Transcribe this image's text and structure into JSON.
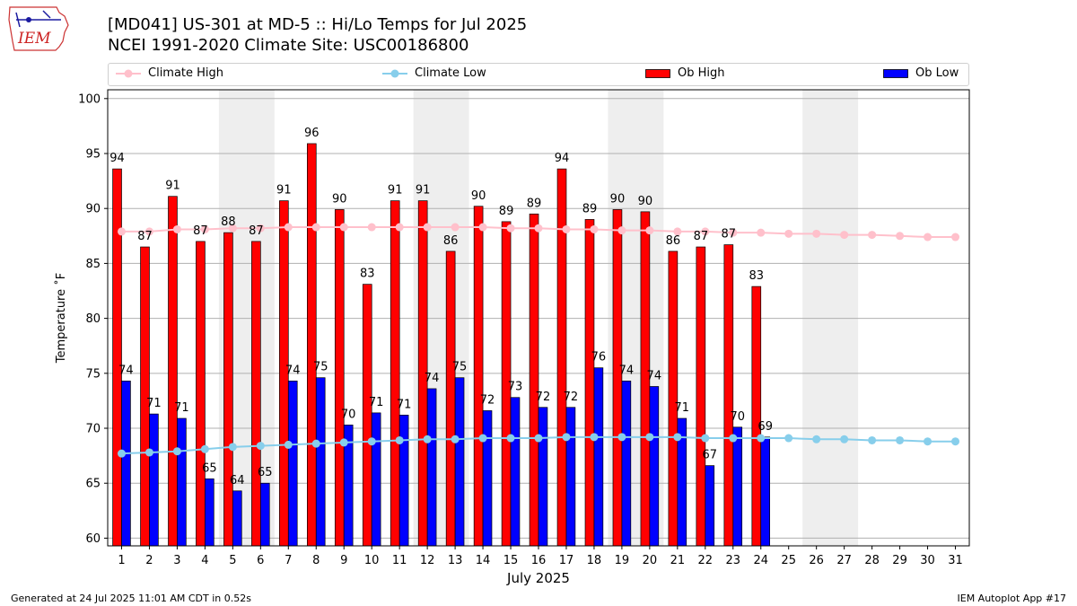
{
  "header": {
    "title_line1": "[MD041] US-301 at MD-5  :: Hi/Lo Temps for Jul 2025",
    "title_line2": "NCEI 1991-2020 Climate Site: USC00186800",
    "logo_text": "IEM"
  },
  "legend": {
    "climate_high": "Climate High",
    "climate_low": "Climate Low",
    "ob_high": "Ob High",
    "ob_low": "Ob Low"
  },
  "footer": {
    "generated": "Generated at 24 Jul 2025 11:01 AM CDT in 0.52s",
    "app": "IEM Autoplot App #17"
  },
  "colors": {
    "ob_high": "#ff0000",
    "ob_low": "#0000ff",
    "climate_high": "#ffc0cb",
    "climate_low": "#87ceeb",
    "weekend_shade": "#eeeeee",
    "grid": "#b0b0b0"
  },
  "chart_data": {
    "type": "bar",
    "xlabel": "July 2025",
    "ylabel": "Temperature ˚F",
    "ylim": [
      59.3,
      100.8
    ],
    "yticks": [
      60,
      65,
      70,
      75,
      80,
      85,
      90,
      95,
      100
    ],
    "grid": "horizontal",
    "legend_position": "top",
    "days": [
      1,
      2,
      3,
      4,
      5,
      6,
      7,
      8,
      9,
      10,
      11,
      12,
      13,
      14,
      15,
      16,
      17,
      18,
      19,
      20,
      21,
      22,
      23,
      24,
      25,
      26,
      27,
      28,
      29,
      30,
      31
    ],
    "shaded_day_ranges": [
      [
        5,
        6
      ],
      [
        12,
        13
      ],
      [
        19,
        20
      ],
      [
        26,
        27
      ]
    ],
    "series": [
      {
        "name": "Ob High",
        "kind": "bar",
        "values": [
          93.6,
          86.5,
          91.1,
          87.0,
          87.8,
          87.0,
          90.7,
          95.9,
          89.9,
          83.1,
          90.7,
          90.7,
          86.1,
          90.2,
          88.8,
          89.5,
          93.6,
          89.0,
          89.9,
          89.7,
          86.1,
          86.5,
          86.7,
          82.9
        ],
        "labels": [
          "94",
          "87",
          "91",
          "87",
          "88",
          "87",
          "91",
          "96",
          "90",
          "83",
          "91",
          "91",
          "86",
          "90",
          "89",
          "89",
          "94",
          "89",
          "90",
          "90",
          "86",
          "87",
          "87",
          "83"
        ]
      },
      {
        "name": "Ob Low",
        "kind": "bar",
        "values": [
          74.3,
          71.3,
          70.9,
          65.4,
          64.3,
          65.0,
          74.3,
          74.6,
          70.3,
          71.4,
          71.2,
          73.6,
          74.6,
          71.6,
          72.8,
          71.9,
          71.9,
          75.5,
          74.3,
          73.8,
          70.9,
          66.6,
          70.1,
          69.2
        ],
        "labels": [
          "74",
          "71",
          "71",
          "65",
          "64",
          "65",
          "74",
          "75",
          "70",
          "71",
          "71",
          "74",
          "75",
          "72",
          "73",
          "72",
          "72",
          "76",
          "74",
          "74",
          "71",
          "67",
          "70",
          "69"
        ]
      },
      {
        "name": "Climate High",
        "kind": "line",
        "values": [
          87.9,
          87.9,
          88.1,
          88.1,
          88.2,
          88.2,
          88.3,
          88.3,
          88.3,
          88.3,
          88.3,
          88.3,
          88.3,
          88.3,
          88.2,
          88.2,
          88.1,
          88.1,
          88.0,
          88.0,
          87.9,
          87.9,
          87.8,
          87.8,
          87.7,
          87.7,
          87.6,
          87.6,
          87.5,
          87.4,
          87.4
        ]
      },
      {
        "name": "Climate Low",
        "kind": "line",
        "values": [
          67.7,
          67.8,
          67.9,
          68.1,
          68.3,
          68.4,
          68.5,
          68.6,
          68.7,
          68.8,
          68.9,
          69.0,
          69.0,
          69.1,
          69.1,
          69.1,
          69.2,
          69.2,
          69.2,
          69.2,
          69.2,
          69.1,
          69.1,
          69.1,
          69.1,
          69.0,
          69.0,
          68.9,
          68.9,
          68.8,
          68.8
        ]
      }
    ]
  }
}
